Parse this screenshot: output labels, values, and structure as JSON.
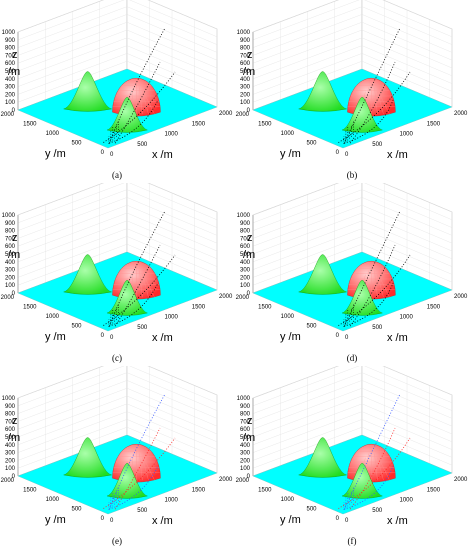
{
  "figure": {
    "panels": [
      {
        "caption": "(a)",
        "trajectory_style": "black"
      },
      {
        "caption": "(b)",
        "trajectory_style": "black"
      },
      {
        "caption": "(c)",
        "trajectory_style": "black"
      },
      {
        "caption": "(d)",
        "trajectory_style": "black"
      },
      {
        "caption": "(e)",
        "trajectory_style": "colored"
      },
      {
        "caption": "(f)",
        "trajectory_style": "colored"
      }
    ]
  },
  "chart_data": {
    "type": "scatter",
    "subtype": "3d-surface-with-trajectories",
    "xlabel": "x  /m",
    "ylabel": "y  /m",
    "zlabel": "z\n/m",
    "xlim": [
      0,
      2000
    ],
    "ylim": [
      0,
      2000
    ],
    "zlim": [
      0,
      1000
    ],
    "x_ticks": [
      "0",
      "500",
      "1000",
      "1500",
      "2000"
    ],
    "y_ticks": [
      "0",
      "500",
      "1000",
      "1500",
      "2000"
    ],
    "z_ticks": [
      "0",
      "100",
      "200",
      "300",
      "400",
      "500",
      "600",
      "700",
      "800",
      "900",
      "1000"
    ],
    "colors": {
      "ground": "#00ffff",
      "mountains": "#22dd22",
      "dome": "#ff2a2a",
      "traj_black": "#000000",
      "traj_blue": "#3355ff",
      "traj_red": "#ff2222"
    }
  }
}
